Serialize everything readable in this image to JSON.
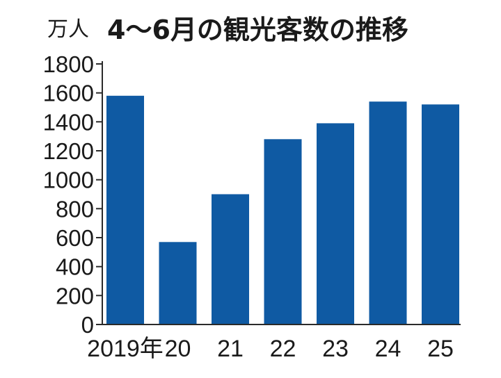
{
  "chart_data": {
    "type": "bar",
    "title": "4〜6月の観光客数の推移",
    "ylabel": "万人",
    "xlabel": "",
    "categories": [
      "2019年",
      "20",
      "21",
      "22",
      "23",
      "24",
      "25"
    ],
    "values": [
      1580,
      570,
      900,
      1280,
      1390,
      1540,
      1520
    ],
    "ylim": [
      0,
      1800
    ],
    "yticks": [
      "0",
      "200",
      "400",
      "600",
      "800",
      "1000",
      "1200",
      "1400",
      "1600",
      "1800"
    ],
    "bar_color": "#0f5aa3",
    "grid": false,
    "legend": "none"
  }
}
